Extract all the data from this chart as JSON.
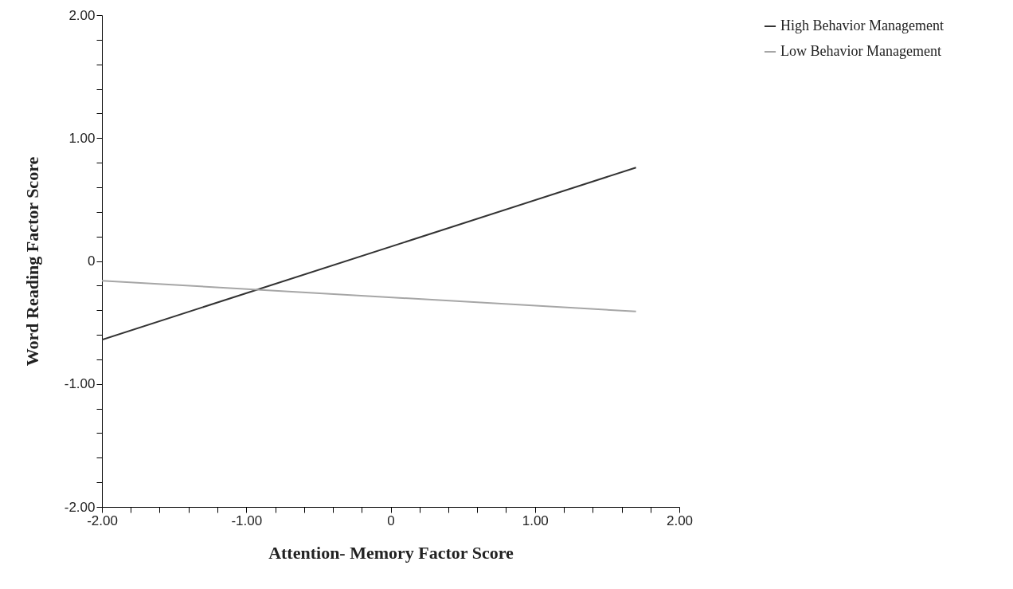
{
  "chart_data": {
    "type": "line",
    "xlabel": "Attention- Memory Factor Score",
    "ylabel": "Word Reading Factor Score",
    "x": [
      -2,
      1.7
    ],
    "series": [
      {
        "name": "High Behavior Management",
        "color": "#333333",
        "values": [
          -0.64,
          0.76
        ]
      },
      {
        "name": "Low Behavior Management",
        "color": "#a6a6a6",
        "values": [
          -0.16,
          -0.41
        ]
      }
    ],
    "xlim": [
      -2,
      2
    ],
    "ylim": [
      -2,
      2
    ],
    "xticks": [
      {
        "value": -2,
        "label": "-2.00"
      },
      {
        "value": -1.8,
        "label": null
      },
      {
        "value": -1.6,
        "label": null
      },
      {
        "value": -1.4,
        "label": null
      },
      {
        "value": -1.2,
        "label": null
      },
      {
        "value": -1,
        "label": "-1.00"
      },
      {
        "value": -0.8,
        "label": null
      },
      {
        "value": -0.6,
        "label": null
      },
      {
        "value": -0.4,
        "label": null
      },
      {
        "value": -0.2,
        "label": null
      },
      0,
      {
        "value": 0.2,
        "label": null
      },
      {
        "value": 0.4,
        "label": null
      },
      {
        "value": 0.6,
        "label": null
      },
      {
        "value": 0.8,
        "label": null
      },
      {
        "value": 1,
        "label": "1.00"
      },
      {
        "value": 1.2,
        "label": null
      },
      {
        "value": 1.4,
        "label": null
      },
      {
        "value": 1.6,
        "label": null
      },
      {
        "value": 1.8,
        "label": null
      },
      {
        "value": 2,
        "label": "2.00"
      }
    ],
    "yticks": [
      {
        "value": -2,
        "label": "-2.00"
      },
      {
        "value": -1.8,
        "label": null
      },
      {
        "value": -1.6,
        "label": null
      },
      {
        "value": -1.4,
        "label": null
      },
      {
        "value": -1.2,
        "label": null
      },
      {
        "value": -1,
        "label": "-1.00"
      },
      {
        "value": -0.8,
        "label": null
      },
      {
        "value": -0.6,
        "label": null
      },
      {
        "value": -0.4,
        "label": null
      },
      {
        "value": -0.2,
        "label": null
      },
      0,
      {
        "value": 0.2,
        "label": null
      },
      {
        "value": 0.4,
        "label": null
      },
      {
        "value": 0.6,
        "label": null
      },
      {
        "value": 0.8,
        "label": null
      },
      {
        "value": 1,
        "label": "1.00"
      },
      {
        "value": 1.2,
        "label": null
      },
      {
        "value": 1.4,
        "label": null
      },
      {
        "value": 1.6,
        "label": null
      },
      {
        "value": 1.8,
        "label": null
      },
      {
        "value": 2,
        "label": "2.00"
      }
    ],
    "grid": false,
    "legend": "top right",
    "marker": "none",
    "line_style": "solid"
  }
}
